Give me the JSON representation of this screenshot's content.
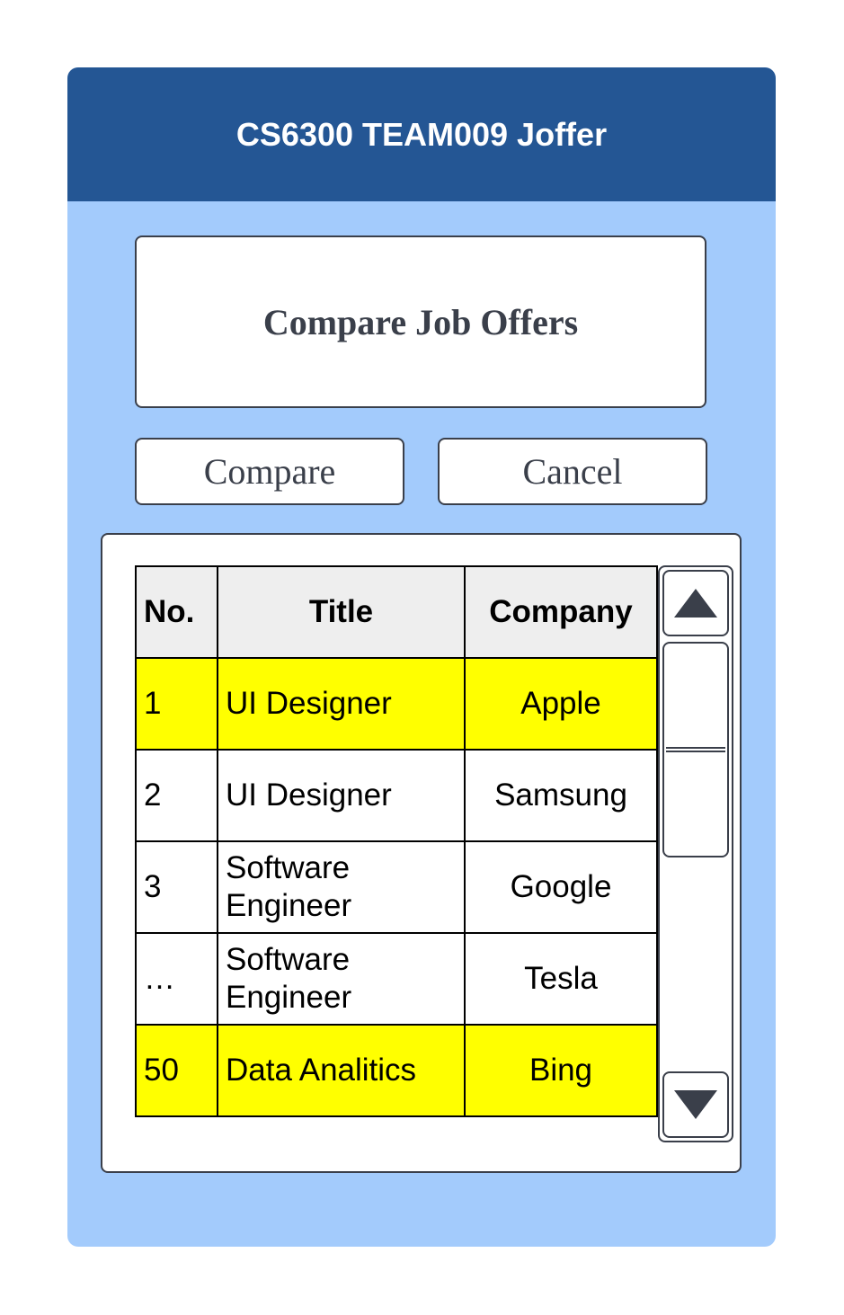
{
  "window": {
    "title": "CS6300 TEAM009 Joffer"
  },
  "header": {
    "heading": "Compare Job Offers"
  },
  "actions": {
    "compare_label": "Compare",
    "cancel_label": "Cancel"
  },
  "table": {
    "columns": [
      "No.",
      "Title",
      "Company"
    ],
    "rows": [
      {
        "no": "1",
        "title": "UI Designer",
        "company": "Apple",
        "selected": true
      },
      {
        "no": "2",
        "title": "UI Designer",
        "company": "Samsung",
        "selected": false
      },
      {
        "no": "3",
        "title": "Software Engineer",
        "company": "Google",
        "selected": false
      },
      {
        "no": "…",
        "title": "Software Engineer",
        "company": "Tesla",
        "selected": false
      },
      {
        "no": "50",
        "title": "Data Analitics",
        "company": "Bing",
        "selected": true
      }
    ]
  },
  "scrollbar": {
    "up_icon": "triangle-up-icon",
    "down_icon": "triangle-down-icon",
    "grip_icon": "grip-lines-icon"
  },
  "colors": {
    "title_bar": "#245694",
    "window_bg": "#a3cbfc",
    "selected_row": "#ffff00",
    "header_row": "#eeeeee"
  }
}
